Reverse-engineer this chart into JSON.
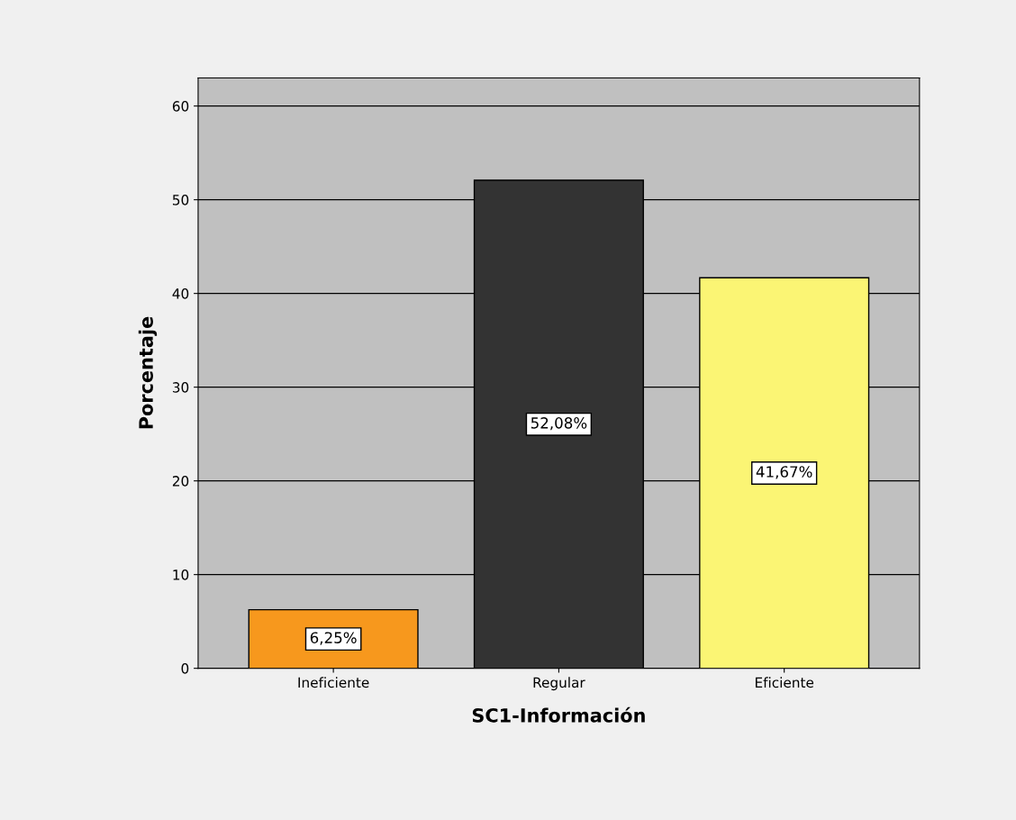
{
  "chart_data": {
    "type": "bar",
    "xlabel": "SC1-Información",
    "ylabel": "Porcentaje",
    "categories": [
      "Ineficiente",
      "Regular",
      "Eficiente"
    ],
    "values": [
      6.25,
      52.08,
      41.67
    ],
    "colors": [
      "#f7981d",
      "#333333",
      "#fbf574"
    ],
    "value_labels": [
      "6,25%",
      "52,08%",
      "41,67%"
    ],
    "ylim": [
      0,
      63
    ],
    "yticks": [
      0,
      10,
      20,
      30,
      40,
      50,
      60
    ],
    "grid": "y"
  }
}
